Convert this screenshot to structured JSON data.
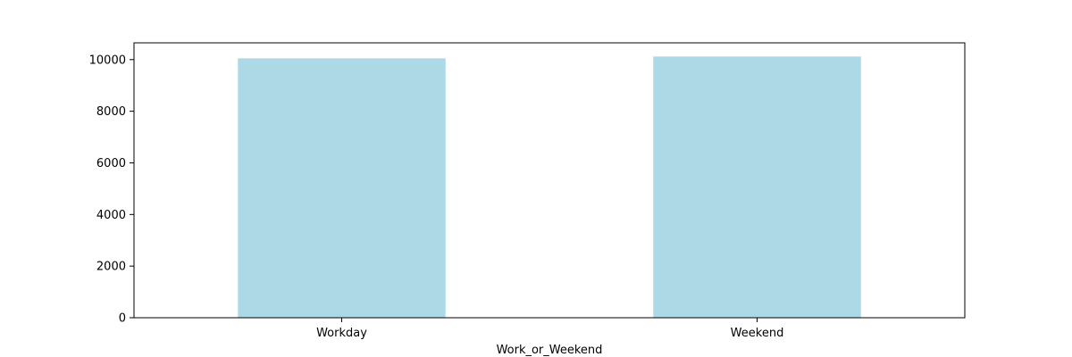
{
  "chart_data": {
    "type": "bar",
    "title": "",
    "xlabel": "Work_or_Weekend",
    "ylabel": "",
    "categories": [
      "Workday",
      "Weekend"
    ],
    "values": [
      10050,
      10120
    ],
    "ylim": [
      0,
      10650
    ],
    "yticks": [
      0,
      2000,
      4000,
      6000,
      8000,
      10000
    ],
    "bar_color": "#add8e6",
    "grid": false,
    "legend": "none"
  }
}
